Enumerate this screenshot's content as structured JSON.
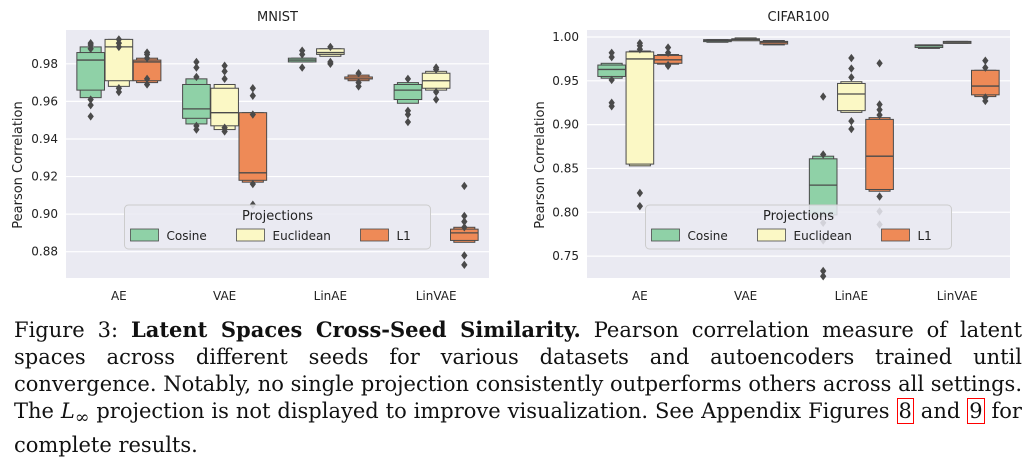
{
  "chart_data": [
    {
      "type": "boxen",
      "title": "MNIST",
      "xlabel": "",
      "ylabel": "Pearson Correlation",
      "ylim": [
        0.866,
        0.998
      ],
      "yticks": [
        0.88,
        0.9,
        0.92,
        0.94,
        0.96,
        0.98
      ],
      "ytick_labels": [
        "0.88",
        "0.90",
        "0.92",
        "0.94",
        "0.96",
        "0.98"
      ],
      "categories": [
        "AE",
        "VAE",
        "LinAE",
        "LinVAE"
      ],
      "grid": true,
      "legend": {
        "title": "Projections",
        "placement": "lower-center",
        "entries": [
          "Cosine",
          "Euclidean",
          "L1"
        ]
      },
      "series": [
        {
          "name": "Cosine",
          "color": "#8fd1a7",
          "boxes": [
            {
              "q1": 0.966,
              "median": 0.982,
              "q3": 0.986,
              "outer_low": 0.962,
              "outer_high": 0.989,
              "outliers": [
                0.952,
                0.958,
                0.961,
                0.988,
                0.99,
                0.991
              ]
            },
            {
              "q1": 0.951,
              "median": 0.956,
              "q3": 0.969,
              "outer_low": 0.948,
              "outer_high": 0.972,
              "outliers": [
                0.945,
                0.947,
                0.973,
                0.978,
                0.981
              ]
            },
            {
              "q1": 0.981,
              "median": 0.982,
              "q3": 0.983,
              "outer_low": 0.981,
              "outer_high": 0.983,
              "outliers": [
                0.978,
                0.985,
                0.987
              ]
            },
            {
              "q1": 0.961,
              "median": 0.966,
              "q3": 0.969,
              "outer_low": 0.959,
              "outer_high": 0.97,
              "outliers": [
                0.949,
                0.953,
                0.955,
                0.972
              ]
            }
          ]
        },
        {
          "name": "Euclidean",
          "color": "#fbf8c5",
          "boxes": [
            {
              "q1": 0.971,
              "median": 0.989,
              "q3": 0.993,
              "outer_low": 0.968,
              "outer_high": 0.993,
              "outliers": [
                0.965,
                0.967,
                0.989,
                0.991,
                0.993
              ]
            },
            {
              "q1": 0.947,
              "median": 0.954,
              "q3": 0.967,
              "outer_low": 0.945,
              "outer_high": 0.969,
              "outliers": [
                0.944,
                0.946,
                0.972,
                0.976,
                0.979
              ]
            },
            {
              "q1": 0.985,
              "median": 0.986,
              "q3": 0.988,
              "outer_low": 0.984,
              "outer_high": 0.988,
              "outliers": [
                0.98,
                0.981,
                0.989
              ]
            },
            {
              "q1": 0.967,
              "median": 0.971,
              "q3": 0.975,
              "outer_low": 0.966,
              "outer_high": 0.976,
              "outliers": [
                0.961,
                0.965,
                0.977,
                0.978
              ]
            }
          ]
        },
        {
          "name": "L1",
          "color": "#ee8a57",
          "boxes": [
            {
              "q1": 0.971,
              "median": 0.981,
              "q3": 0.982,
              "outer_low": 0.97,
              "outer_high": 0.983,
              "outliers": [
                0.969,
                0.972,
                0.983,
                0.985,
                0.986
              ]
            },
            {
              "q1": 0.918,
              "median": 0.922,
              "q3": 0.954,
              "outer_low": 0.917,
              "outer_high": 0.954,
              "outliers": [
                0.905,
                0.916,
                0.953,
                0.963,
                0.967
              ]
            },
            {
              "q1": 0.972,
              "median": 0.972,
              "q3": 0.973,
              "outer_low": 0.971,
              "outer_high": 0.974,
              "outliers": [
                0.968,
                0.97,
                0.975
              ]
            },
            {
              "q1": 0.886,
              "median": 0.89,
              "q3": 0.892,
              "outer_low": 0.885,
              "outer_high": 0.893,
              "outliers": [
                0.873,
                0.878,
                0.893,
                0.896,
                0.899,
                0.915
              ]
            }
          ]
        }
      ]
    },
    {
      "type": "boxen",
      "title": "CIFAR100",
      "xlabel": "",
      "ylabel": "Pearson Correlation",
      "ylim": [
        0.725,
        1.008
      ],
      "yticks": [
        0.75,
        0.8,
        0.85,
        0.9,
        0.95,
        1.0
      ],
      "ytick_labels": [
        "0.75",
        "0.80",
        "0.85",
        "0.90",
        "0.95",
        "1.00"
      ],
      "categories": [
        "AE",
        "VAE",
        "LinAE",
        "LinVAE"
      ],
      "grid": true,
      "legend": {
        "title": "Projections",
        "placement": "lower-center",
        "entries": [
          "Cosine",
          "Euclidean",
          "L1"
        ]
      },
      "series": [
        {
          "name": "Cosine",
          "color": "#8fd1a7",
          "boxes": [
            {
              "q1": 0.955,
              "median": 0.963,
              "q3": 0.968,
              "outer_low": 0.953,
              "outer_high": 0.97,
              "outliers": [
                0.921,
                0.925,
                0.951,
                0.977,
                0.982
              ]
            },
            {
              "q1": 0.995,
              "median": 0.996,
              "q3": 0.997,
              "outer_low": 0.994,
              "outer_high": 0.997,
              "outliers": []
            },
            {
              "q1": 0.797,
              "median": 0.831,
              "q3": 0.861,
              "outer_low": 0.795,
              "outer_high": 0.864,
              "outliers": [
                0.727,
                0.733,
                0.768,
                0.788,
                0.866,
                0.932
              ]
            },
            {
              "q1": 0.988,
              "median": 0.99,
              "q3": 0.991,
              "outer_low": 0.987,
              "outer_high": 0.991,
              "outliers": []
            }
          ]
        },
        {
          "name": "Euclidean",
          "color": "#fbf8c5",
          "boxes": [
            {
              "q1": 0.855,
              "median": 0.975,
              "q3": 0.983,
              "outer_low": 0.853,
              "outer_high": 0.984,
              "outliers": [
                0.807,
                0.822,
                0.986,
                0.99,
                0.993
              ]
            },
            {
              "q1": 0.996,
              "median": 0.997,
              "q3": 0.998,
              "outer_low": 0.996,
              "outer_high": 0.999,
              "outliers": []
            },
            {
              "q1": 0.916,
              "median": 0.935,
              "q3": 0.947,
              "outer_low": 0.914,
              "outer_high": 0.949,
              "outliers": [
                0.895,
                0.904,
                0.954,
                0.964,
                0.976
              ]
            },
            {
              "q1": 0.993,
              "median": 0.994,
              "q3": 0.995,
              "outer_low": 0.993,
              "outer_high": 0.995,
              "outliers": []
            }
          ]
        },
        {
          "name": "L1",
          "color": "#ee8a57",
          "boxes": [
            {
              "q1": 0.97,
              "median": 0.974,
              "q3": 0.979,
              "outer_low": 0.969,
              "outer_high": 0.98,
              "outliers": [
                0.967,
                0.968,
                0.982,
                0.988
              ]
            },
            {
              "q1": 0.992,
              "median": 0.994,
              "q3": 0.995,
              "outer_low": 0.991,
              "outer_high": 0.996,
              "outliers": []
            },
            {
              "q1": 0.826,
              "median": 0.864,
              "q3": 0.906,
              "outer_low": 0.824,
              "outer_high": 0.908,
              "outliers": [
                0.786,
                0.801,
                0.818,
                0.911,
                0.917,
                0.923,
                0.97
              ]
            },
            {
              "q1": 0.934,
              "median": 0.944,
              "q3": 0.962,
              "outer_low": 0.932,
              "outer_high": 0.962,
              "outliers": [
                0.927,
                0.931,
                0.965,
                0.973
              ]
            }
          ]
        }
      ]
    }
  ],
  "caption": {
    "prefix": "Figure 3: ",
    "bold": "Latent Spaces Cross-Seed Similarity.",
    "text1": " Pearson correlation measure of latent spaces across different seeds for various datasets and autoencoders trained until convergence. Notably, no single projection consistently outperforms others across all settings. The ",
    "math_base": "L",
    "math_sub": "∞",
    "text2": " projection is not displayed to improve visualization. See Appendix Figures ",
    "ref1": "8",
    "and_text": " and ",
    "ref2": "9",
    "text3": " for complete results."
  }
}
